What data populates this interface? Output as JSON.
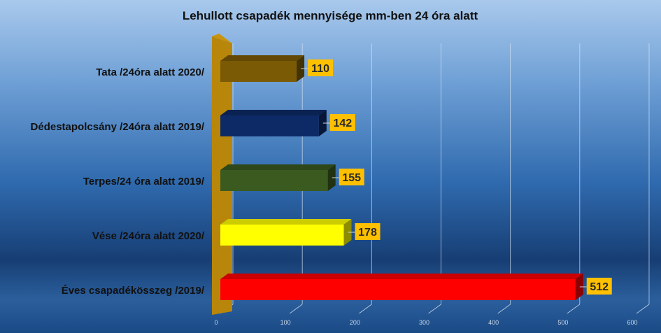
{
  "chart_data": {
    "type": "bar",
    "orientation": "horizontal",
    "title": "Lehullott csapadék mennyisége mm-ben 24 óra alatt",
    "xlabel": "",
    "ylabel": "",
    "xlim": [
      0,
      600
    ],
    "x_ticks": [
      "0",
      "100",
      "200",
      "300",
      "400",
      "500",
      "600"
    ],
    "grid": true,
    "legend": "none",
    "categories": [
      "Tata /24óra alatt 2020/",
      "Dédestapolcsány /24óra alatt 2019/",
      "Terpes/24 óra alatt 2019/",
      "Vése /24óra alatt 2020/",
      "Éves csapadékösszeg /2019/"
    ],
    "values": [
      110,
      142,
      155,
      178,
      512
    ],
    "value_labels": [
      "110",
      "142",
      "155",
      "178",
      "512"
    ],
    "bar_colors": [
      "#7a5a05",
      "#0d2a66",
      "#3a5a20",
      "#ffff00",
      "#ff0000"
    ],
    "wall_color": "#b8860b",
    "label_box_color": "#ffc000"
  }
}
